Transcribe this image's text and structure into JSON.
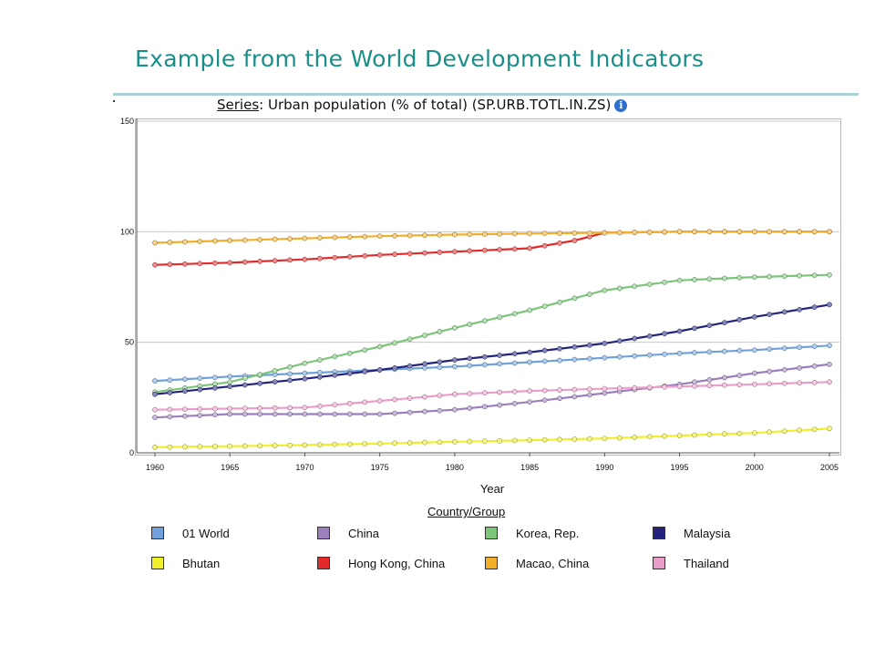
{
  "slide": {
    "title": "Example from the World Development Indicators"
  },
  "series_header": {
    "label": "Series",
    "text": ": Urban population (% of total) (SP.URB.TOTL.IN.ZS)",
    "icon": "info-icon"
  },
  "chart_data": {
    "type": "line",
    "xlabel": "Year",
    "ylabel": "",
    "xlim": [
      1960,
      2005
    ],
    "ylim": [
      0,
      150
    ],
    "x_ticks": [
      "1960",
      "1965",
      "1970",
      "1975",
      "1980",
      "1985",
      "1990",
      "1995",
      "2000",
      "2005"
    ],
    "y_ticks": [
      "0",
      "50",
      "100",
      "150"
    ],
    "grid": "horizontal",
    "legend_position": "bottom",
    "legend_title": "Country/Group",
    "series": [
      {
        "name": "01 World",
        "color": "#6fa2dc",
        "points": [
          [
            1960,
            32.5
          ],
          [
            1965,
            34.5
          ],
          [
            1970,
            36
          ],
          [
            1975,
            37.5
          ],
          [
            1980,
            39
          ],
          [
            1985,
            41
          ],
          [
            1990,
            43
          ],
          [
            1995,
            45
          ],
          [
            2000,
            46.5
          ],
          [
            2005,
            48.5
          ]
        ]
      },
      {
        "name": "China",
        "color": "#9c7fbd",
        "points": [
          [
            1960,
            16
          ],
          [
            1965,
            17.5
          ],
          [
            1970,
            17.5
          ],
          [
            1975,
            17.5
          ],
          [
            1980,
            19.5
          ],
          [
            1985,
            23
          ],
          [
            1990,
            27
          ],
          [
            1995,
            31
          ],
          [
            2000,
            36
          ],
          [
            2005,
            40
          ]
        ]
      },
      {
        "name": "Korea, Rep.",
        "color": "#7cc67a",
        "points": [
          [
            1960,
            27.5
          ],
          [
            1965,
            32
          ],
          [
            1970,
            40.5
          ],
          [
            1975,
            48
          ],
          [
            1980,
            56.5
          ],
          [
            1985,
            64.5
          ],
          [
            1990,
            73.5
          ],
          [
            1995,
            78
          ],
          [
            2000,
            79.5
          ],
          [
            2005,
            80.5
          ]
        ]
      },
      {
        "name": "Malaysia",
        "color": "#23237f",
        "points": [
          [
            1960,
            26.5
          ],
          [
            1965,
            30
          ],
          [
            1970,
            33.5
          ],
          [
            1975,
            37.5
          ],
          [
            1980,
            42
          ],
          [
            1985,
            45.5
          ],
          [
            1990,
            49.5
          ],
          [
            1995,
            55
          ],
          [
            2000,
            61.5
          ],
          [
            2005,
            67
          ]
        ]
      },
      {
        "name": "Bhutan",
        "color": "#f0f02a",
        "points": [
          [
            1960,
            2.5
          ],
          [
            1965,
            3
          ],
          [
            1970,
            3.5
          ],
          [
            1975,
            4.2
          ],
          [
            1980,
            5
          ],
          [
            1985,
            5.7
          ],
          [
            1990,
            6.5
          ],
          [
            1995,
            7.8
          ],
          [
            2000,
            9
          ],
          [
            2005,
            11
          ]
        ]
      },
      {
        "name": "Hong Kong, China",
        "color": "#e22a2a",
        "points": [
          [
            1960,
            85
          ],
          [
            1965,
            86
          ],
          [
            1970,
            87.5
          ],
          [
            1975,
            89.5
          ],
          [
            1980,
            91
          ],
          [
            1985,
            92.5
          ],
          [
            1988,
            96
          ],
          [
            1990,
            99.5
          ],
          [
            1995,
            100
          ],
          [
            2000,
            100
          ],
          [
            2005,
            100
          ]
        ]
      },
      {
        "name": "Macao, China",
        "color": "#f2b02a",
        "points": [
          [
            1960,
            95
          ],
          [
            1965,
            96
          ],
          [
            1970,
            97
          ],
          [
            1975,
            98
          ],
          [
            1980,
            98.7
          ],
          [
            1985,
            99.2
          ],
          [
            1990,
            99.5
          ],
          [
            1995,
            100
          ],
          [
            2000,
            100
          ],
          [
            2005,
            100
          ]
        ]
      },
      {
        "name": "Thailand",
        "color": "#ec9ecb",
        "points": [
          [
            1960,
            19.5
          ],
          [
            1965,
            20
          ],
          [
            1970,
            20.5
          ],
          [
            1975,
            23.5
          ],
          [
            1980,
            26.5
          ],
          [
            1985,
            28
          ],
          [
            1990,
            29
          ],
          [
            1995,
            30
          ],
          [
            2000,
            31
          ],
          [
            2005,
            32
          ]
        ]
      }
    ]
  }
}
